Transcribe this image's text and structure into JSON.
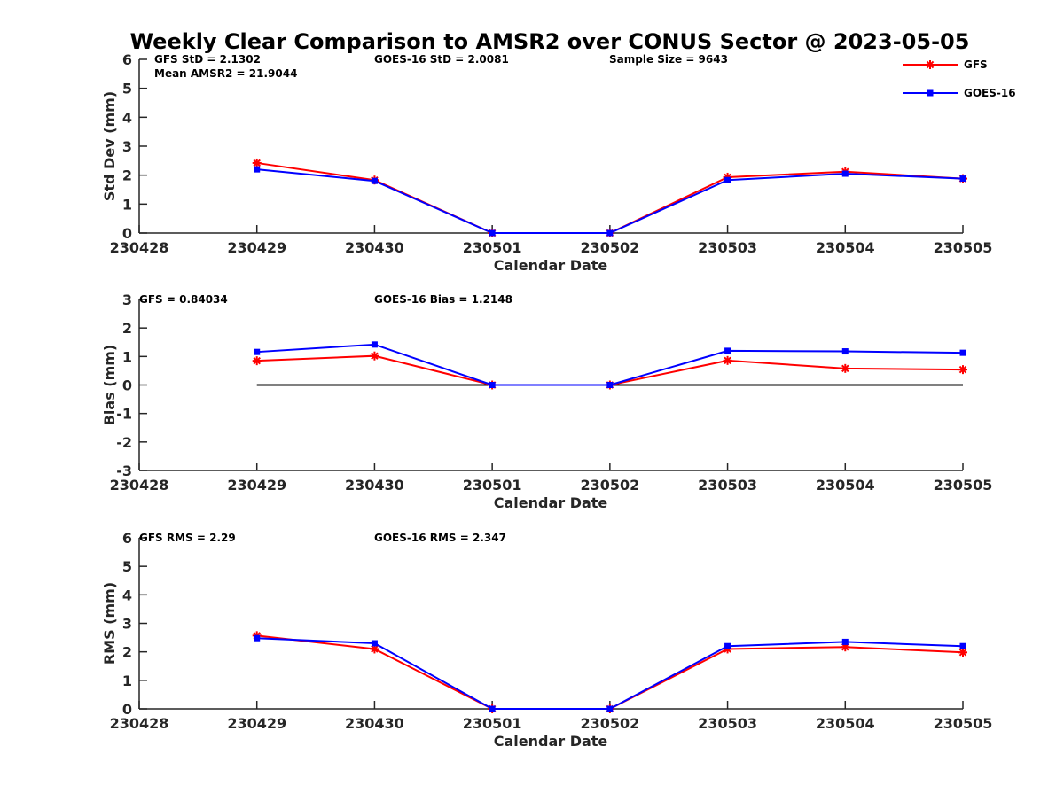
{
  "title": "Weekly Clear Comparison to AMSR2 over CONUS Sector @ 2023-05-05",
  "legend": {
    "position": "top-right",
    "entries": [
      {
        "name": "GFS",
        "color": "#ff0000",
        "marker": "asterisk"
      },
      {
        "name": "GOES-16",
        "color": "#0000ff",
        "marker": "square"
      }
    ]
  },
  "chart_data": [
    {
      "type": "line",
      "xlabel": "Calendar Date",
      "ylabel": "Std Dev (mm)",
      "categories": [
        "230428",
        "230429",
        "230430",
        "230501",
        "230502",
        "230503",
        "230504",
        "230505"
      ],
      "yticks": [
        "0",
        "1",
        "2",
        "3",
        "4",
        "5",
        "6"
      ],
      "ylim": [
        0,
        6
      ],
      "grid": false,
      "annotations": [
        "GFS StD = 2.1302",
        "GOES-16 StD = 2.0081",
        "Sample Size = 9643",
        "Mean AMSR2 = 21.9044"
      ],
      "series": [
        {
          "name": "GFS",
          "color": "#ff0000",
          "values": [
            null,
            2.42,
            1.83,
            0.0,
            0.0,
            1.93,
            2.12,
            1.88
          ]
        },
        {
          "name": "GOES-16",
          "color": "#0000ff",
          "values": [
            null,
            2.2,
            1.8,
            0.0,
            0.0,
            1.83,
            2.05,
            1.88
          ]
        }
      ]
    },
    {
      "type": "line",
      "xlabel": "Calendar Date",
      "ylabel": "Bias (mm)",
      "categories": [
        "230428",
        "230429",
        "230430",
        "230501",
        "230502",
        "230503",
        "230504",
        "230505"
      ],
      "yticks": [
        "-3",
        "-2",
        "-1",
        "0",
        "1",
        "2",
        "3"
      ],
      "ylim": [
        -3,
        3
      ],
      "grid": false,
      "zero_line": true,
      "annotations": [
        "GFS = 0.84034",
        "GOES-16 Bias  = 1.2148"
      ],
      "series": [
        {
          "name": "GFS",
          "color": "#ff0000",
          "values": [
            null,
            0.85,
            1.02,
            0.0,
            0.0,
            0.86,
            0.58,
            0.54
          ]
        },
        {
          "name": "GOES-16",
          "color": "#0000ff",
          "values": [
            null,
            1.16,
            1.42,
            0.0,
            0.0,
            1.2,
            1.18,
            1.13
          ]
        }
      ]
    },
    {
      "type": "line",
      "xlabel": "Calendar Date",
      "ylabel": "RMS (mm)",
      "categories": [
        "230428",
        "230429",
        "230430",
        "230501",
        "230502",
        "230503",
        "230504",
        "230505"
      ],
      "yticks": [
        "0",
        "1",
        "2",
        "3",
        "4",
        "5",
        "6"
      ],
      "ylim": [
        0,
        6
      ],
      "grid": false,
      "annotations": [
        "GFS RMS = 2.29",
        "GOES-16 RMS = 2.347"
      ],
      "series": [
        {
          "name": "GFS",
          "color": "#ff0000",
          "values": [
            null,
            2.57,
            2.1,
            0.0,
            0.0,
            2.1,
            2.17,
            1.98
          ]
        },
        {
          "name": "GOES-16",
          "color": "#0000ff",
          "values": [
            null,
            2.48,
            2.3,
            0.0,
            0.0,
            2.2,
            2.35,
            2.2
          ]
        }
      ]
    }
  ]
}
